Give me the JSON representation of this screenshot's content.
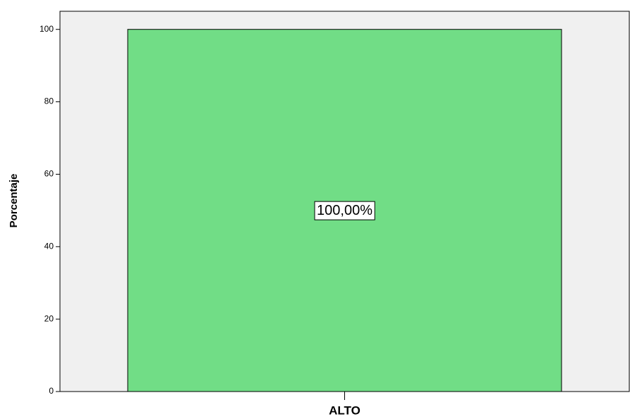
{
  "chart_data": {
    "type": "bar",
    "y_label": "Porcentaje",
    "categories": [
      "ALTO"
    ],
    "values": [
      100
    ],
    "value_labels": [
      "100,00%"
    ],
    "color": "#71dd86",
    "ylim": [
      0,
      105
    ],
    "yticks": [
      0,
      20,
      40,
      60,
      80,
      100
    ],
    "grid": false
  }
}
